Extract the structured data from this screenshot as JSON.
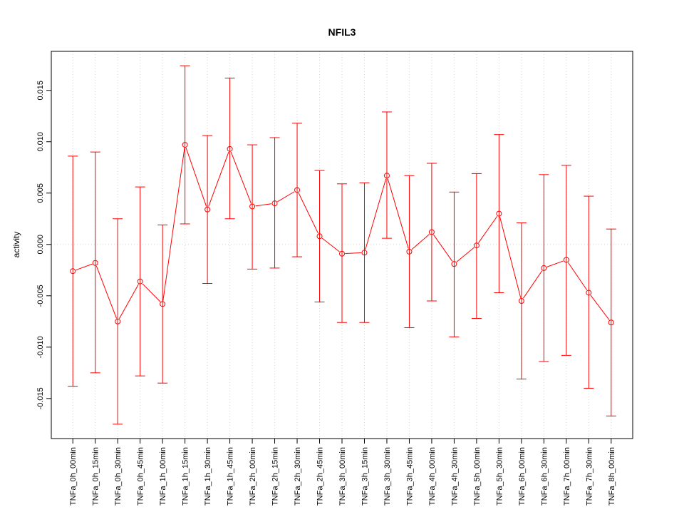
{
  "chart_data": {
    "type": "line",
    "title": "NFIL3",
    "xlabel": "",
    "ylabel": "activity",
    "ylim": [
      -0.0189,
      0.0188
    ],
    "xlim": [
      0.04,
      25.96
    ],
    "grid": true,
    "y_ticks": [
      -0.015,
      -0.01,
      -0.005,
      0.0,
      0.005,
      0.01,
      0.015
    ],
    "y_tick_labels": [
      "-0.015",
      "-0.010",
      "-0.005",
      "0.000",
      "0.005",
      "0.010",
      "0.015"
    ],
    "categories": [
      "TNFa_0h_00min",
      "TNFa_0h_15min",
      "TNFa_0h_30min",
      "TNFa_0h_45min",
      "TNFa_1h_00min",
      "TNFa_1h_15min",
      "TNFa_1h_30min",
      "TNFa_1h_45min",
      "TNFa_2h_00min",
      "TNFa_2h_15min",
      "TNFa_2h_30min",
      "TNFa_2h_45min",
      "TNFa_3h_00min",
      "TNFa_3h_15min",
      "TNFa_3h_30min",
      "TNFa_3h_45min",
      "TNFa_4h_00min",
      "TNFa_4h_30min",
      "TNFa_5h_00min",
      "TNFa_5h_30min",
      "TNFa_6h_00min",
      "TNFa_6h_30min",
      "TNFa_7h_00min",
      "TNFa_7h_30min",
      "TNFa_8h_00min"
    ],
    "values": [
      -0.0026,
      -0.0018,
      -0.0075,
      -0.0036,
      -0.0058,
      0.0097,
      0.0034,
      0.0093,
      0.0037,
      0.004,
      0.0053,
      0.0008,
      -0.0009,
      -0.0008,
      0.0067,
      -0.0007,
      0.0012,
      -0.0019,
      -0.0001,
      0.003,
      -0.0055,
      -0.0023,
      -0.0015,
      -0.0047,
      -0.0076
    ],
    "upper": [
      0.0086,
      0.009,
      0.0025,
      0.0056,
      0.0019,
      0.0174,
      0.0106,
      0.0162,
      0.0097,
      0.0104,
      0.0118,
      0.0072,
      0.0059,
      0.006,
      0.0129,
      0.0067,
      0.0079,
      0.0051,
      0.0069,
      0.0107,
      0.0021,
      0.0068,
      0.0077,
      0.0047,
      0.0015
    ],
    "lower": [
      -0.0138,
      -0.0125,
      -0.0175,
      -0.0128,
      -0.0135,
      0.002,
      -0.0038,
      0.0025,
      -0.0024,
      -0.0023,
      -0.0012,
      -0.0056,
      -0.0076,
      -0.0076,
      0.0006,
      -0.0081,
      -0.0055,
      -0.009,
      -0.0072,
      -0.0047,
      -0.0131,
      -0.0114,
      -0.0108,
      -0.014,
      -0.0167
    ],
    "series_color": "#ff0000",
    "grid_color": "#d3d3d3"
  }
}
